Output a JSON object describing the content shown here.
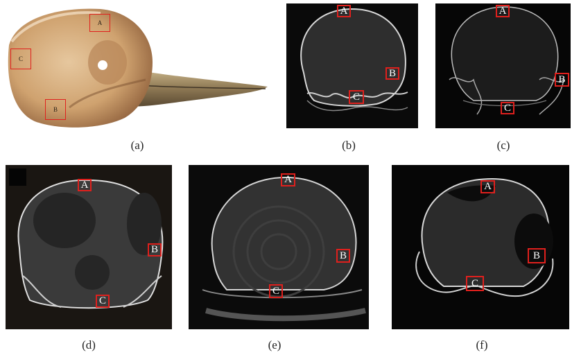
{
  "captions": {
    "a": "(a)",
    "b": "(b)",
    "c": "(c)",
    "d": "(d)",
    "e": "(e)",
    "f": "(f)"
  },
  "markers": {
    "a": {
      "A": "A",
      "B": "B",
      "C": "C"
    },
    "b": {
      "A": "A",
      "B": "B",
      "C": "C"
    },
    "c": {
      "A": "A",
      "B": "B",
      "C": "C"
    },
    "d": {
      "A": "A",
      "B": "B",
      "C": "C"
    },
    "e": {
      "A": "A",
      "B": "B",
      "C": "C"
    },
    "f": {
      "A": "A",
      "B": "B",
      "C": "C"
    }
  },
  "colors": {
    "marker_border": "#e0201d",
    "ct_background": "#0a0a0a",
    "skull_tone": "#d9b58a"
  }
}
